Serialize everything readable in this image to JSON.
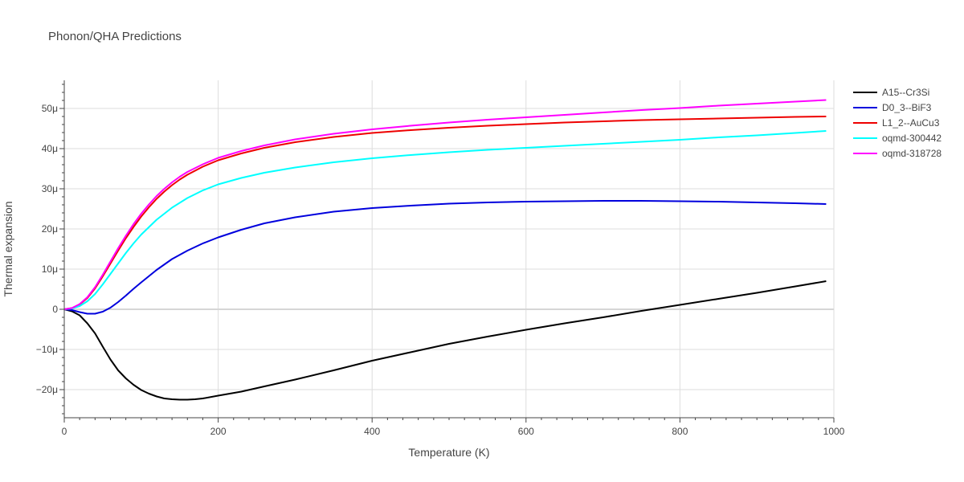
{
  "chart_data": {
    "type": "line",
    "title": "Phonon/QHA Predictions",
    "xlabel": "Temperature (K)",
    "ylabel": "Thermal expansion",
    "xlim": [
      0,
      1000
    ],
    "ylim": [
      -2.7e-05,
      5.7e-05
    ],
    "x_ticks": [
      0,
      200,
      400,
      600,
      800,
      1000
    ],
    "x_tick_labels": [
      "0",
      "200",
      "400",
      "600",
      "800",
      "1000"
    ],
    "y_ticks": [
      -2e-05,
      -1e-05,
      0,
      1e-05,
      2e-05,
      3e-05,
      4e-05,
      5e-05
    ],
    "y_tick_labels": [
      "−20μ",
      "−10μ",
      "0",
      "10μ",
      "20μ",
      "30μ",
      "40μ",
      "50μ"
    ],
    "grid": true,
    "legend_position": "top-right",
    "series": [
      {
        "name": "A15--Cr3Si",
        "color": "#000000",
        "x": [
          0,
          10,
          20,
          30,
          40,
          50,
          60,
          70,
          80,
          90,
          100,
          110,
          120,
          130,
          140,
          150,
          160,
          170,
          180,
          200,
          230,
          260,
          300,
          350,
          400,
          450,
          500,
          550,
          600,
          650,
          700,
          750,
          800,
          850,
          900,
          950,
          990
        ],
        "y": [
          0,
          -5e-07,
          -1.5e-06,
          -3.5e-06,
          -6e-06,
          -9.3e-06,
          -1.25e-05,
          -1.52e-05,
          -1.72e-05,
          -1.88e-05,
          -2.01e-05,
          -2.1e-05,
          -2.17e-05,
          -2.22e-05,
          -2.24e-05,
          -2.25e-05,
          -2.25e-05,
          -2.24e-05,
          -2.22e-05,
          -2.15e-05,
          -2.05e-05,
          -1.92e-05,
          -1.75e-05,
          -1.52e-05,
          -1.28e-05,
          -1.07e-05,
          -8.6e-06,
          -6.8e-06,
          -5.1e-06,
          -3.5e-06,
          -2e-06,
          -4e-07,
          1.1e-06,
          2.6e-06,
          4.1e-06,
          5.7e-06,
          7e-06
        ]
      },
      {
        "name": "D0_3--BiF3",
        "color": "#0000dd",
        "x": [
          0,
          10,
          20,
          30,
          40,
          50,
          60,
          70,
          80,
          90,
          100,
          120,
          140,
          160,
          180,
          200,
          230,
          260,
          300,
          350,
          400,
          450,
          500,
          550,
          600,
          650,
          700,
          750,
          800,
          850,
          900,
          950,
          990
        ],
        "y": [
          0,
          -2e-07,
          -7e-07,
          -1.1e-06,
          -1.1e-06,
          -6e-07,
          4e-07,
          1.8e-06,
          3.4e-06,
          5.1e-06,
          6.7e-06,
          9.8e-06,
          1.25e-05,
          1.46e-05,
          1.64e-05,
          1.79e-05,
          1.98e-05,
          2.14e-05,
          2.29e-05,
          2.43e-05,
          2.52e-05,
          2.58e-05,
          2.63e-05,
          2.66e-05,
          2.68e-05,
          2.69e-05,
          2.7e-05,
          2.7e-05,
          2.69e-05,
          2.68e-05,
          2.66e-05,
          2.64e-05,
          2.62e-05
        ]
      },
      {
        "name": "L1_2--AuCu3",
        "color": "#ee0000",
        "x": [
          0,
          10,
          20,
          30,
          40,
          50,
          60,
          70,
          80,
          90,
          100,
          110,
          120,
          130,
          140,
          150,
          160,
          180,
          200,
          230,
          260,
          300,
          350,
          400,
          450,
          500,
          550,
          600,
          650,
          700,
          750,
          800,
          850,
          900,
          950,
          990
        ],
        "y": [
          0,
          3e-07,
          1.2e-06,
          2.8e-06,
          5.2e-06,
          8.2e-06,
          1.14e-05,
          1.46e-05,
          1.77e-05,
          2.05e-05,
          2.31e-05,
          2.54e-05,
          2.75e-05,
          2.93e-05,
          3.09e-05,
          3.23e-05,
          3.35e-05,
          3.55e-05,
          3.71e-05,
          3.88e-05,
          4.02e-05,
          4.16e-05,
          4.29e-05,
          4.39e-05,
          4.46e-05,
          4.52e-05,
          4.57e-05,
          4.61e-05,
          4.65e-05,
          4.68e-05,
          4.71e-05,
          4.73e-05,
          4.75e-05,
          4.77e-05,
          4.79e-05,
          4.8e-05
        ]
      },
      {
        "name": "oqmd-300442",
        "color": "#00ffff",
        "x": [
          0,
          10,
          20,
          30,
          40,
          50,
          60,
          70,
          80,
          90,
          100,
          120,
          140,
          160,
          180,
          200,
          230,
          260,
          300,
          350,
          400,
          450,
          500,
          550,
          600,
          650,
          700,
          750,
          800,
          850,
          900,
          950,
          990
        ],
        "y": [
          0,
          2e-07,
          8e-07,
          2e-06,
          3.8e-06,
          6.2e-06,
          8.8e-06,
          1.14e-05,
          1.4e-05,
          1.64e-05,
          1.86e-05,
          2.23e-05,
          2.53e-05,
          2.77e-05,
          2.96e-05,
          3.11e-05,
          3.27e-05,
          3.4e-05,
          3.53e-05,
          3.66e-05,
          3.76e-05,
          3.84e-05,
          3.91e-05,
          3.97e-05,
          4.02e-05,
          4.07e-05,
          4.12e-05,
          4.17e-05,
          4.22e-05,
          4.28e-05,
          4.33e-05,
          4.39e-05,
          4.44e-05
        ]
      },
      {
        "name": "oqmd-318728",
        "color": "#ff00ff",
        "x": [
          0,
          10,
          20,
          30,
          40,
          50,
          60,
          70,
          80,
          90,
          100,
          110,
          120,
          130,
          140,
          150,
          160,
          180,
          200,
          230,
          260,
          300,
          350,
          400,
          450,
          500,
          550,
          600,
          650,
          700,
          750,
          800,
          850,
          900,
          950,
          990
        ],
        "y": [
          0,
          3e-07,
          1.3e-06,
          3e-06,
          5.5e-06,
          8.6e-06,
          1.19e-05,
          1.52e-05,
          1.83e-05,
          2.12e-05,
          2.38e-05,
          2.61e-05,
          2.82e-05,
          3e-05,
          3.16e-05,
          3.3e-05,
          3.42e-05,
          3.61e-05,
          3.77e-05,
          3.94e-05,
          4.08e-05,
          4.23e-05,
          4.37e-05,
          4.48e-05,
          4.57e-05,
          4.65e-05,
          4.72e-05,
          4.78e-05,
          4.84e-05,
          4.9e-05,
          4.96e-05,
          5.01e-05,
          5.07e-05,
          5.12e-05,
          5.17e-05,
          5.21e-05
        ]
      }
    ]
  }
}
